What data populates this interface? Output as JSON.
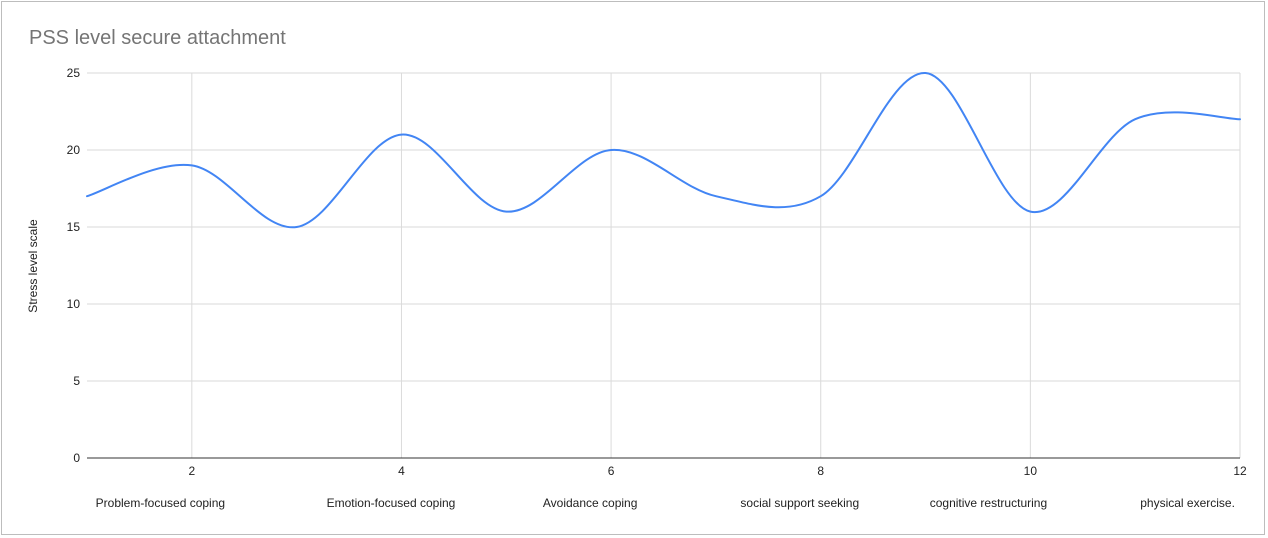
{
  "chart_data": {
    "type": "line",
    "title": "PSS level secure attachment",
    "xlabel": "",
    "ylabel": "Stress level scale",
    "xlim": [
      1,
      12
    ],
    "ylim": [
      0,
      25
    ],
    "x_ticks": [
      2,
      4,
      6,
      8,
      10,
      12
    ],
    "y_ticks": [
      0,
      5,
      10,
      15,
      20,
      25
    ],
    "grid": true,
    "smooth": true,
    "series": [
      {
        "color": "#4285f4",
        "points": [
          {
            "x": 1,
            "y": 17
          },
          {
            "x": 2,
            "y": 19
          },
          {
            "x": 3,
            "y": 15
          },
          {
            "x": 4,
            "y": 21
          },
          {
            "x": 5,
            "y": 16
          },
          {
            "x": 6,
            "y": 20
          },
          {
            "x": 7,
            "y": 17
          },
          {
            "x": 8,
            "y": 17
          },
          {
            "x": 9,
            "y": 25
          },
          {
            "x": 10,
            "y": 16
          },
          {
            "x": 11,
            "y": 22
          },
          {
            "x": 12,
            "y": 22
          }
        ]
      }
    ],
    "annotations": [
      "Problem-focused coping",
      "Emotion-focused coping",
      "Avoidance coping",
      "social support seeking",
      "cognitive restructuring",
      "physical exercise."
    ]
  }
}
